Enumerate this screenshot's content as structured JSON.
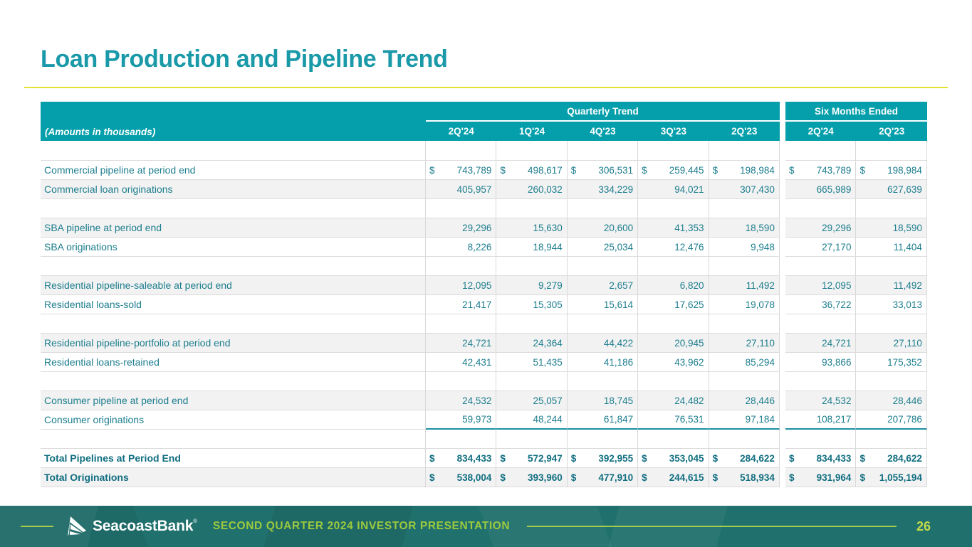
{
  "slide": {
    "title": "Loan Production and Pipeline Trend",
    "page_number": "26",
    "footer_title": "SECOND QUARTER 2024 INVESTOR PRESENTATION",
    "brand": "SeacoastBank",
    "brand_mark": "®"
  },
  "colors": {
    "header_teal": "#059fab",
    "title_teal": "#1a99a8",
    "text_teal": "#1d7e8e",
    "total_teal": "#106e80",
    "rule_yellow": "#e1e233",
    "footer_green": "#9cca3e",
    "footer_bg": "#20706d",
    "band_gray": "#f2f2f2"
  },
  "table": {
    "note": "(Amounts in thousands)",
    "groups": [
      {
        "label": "Quarterly Trend",
        "columns": [
          "2Q'24",
          "1Q'24",
          "4Q'23",
          "3Q'23",
          "2Q'23"
        ]
      },
      {
        "label": "Six Months Ended",
        "columns": [
          "2Q'24",
          "2Q'23"
        ]
      }
    ],
    "rows": [
      {
        "blank": true,
        "tall": true
      },
      {
        "label": "Commercial pipeline at period end",
        "dollar": true,
        "q": [
          "743,789",
          "498,617",
          "306,531",
          "259,445",
          "198,984"
        ],
        "s": [
          "743,789",
          "198,984"
        ]
      },
      {
        "label": "Commercial loan originations",
        "shaded": true,
        "q": [
          "405,957",
          "260,032",
          "334,229",
          "94,021",
          "307,430"
        ],
        "s": [
          "665,989",
          "627,639"
        ]
      },
      {
        "blank": true
      },
      {
        "label": "SBA pipeline at period end",
        "shaded": true,
        "q": [
          "29,296",
          "15,630",
          "20,600",
          "41,353",
          "18,590"
        ],
        "s": [
          "29,296",
          "18,590"
        ]
      },
      {
        "label": "SBA originations",
        "q": [
          "8,226",
          "18,944",
          "25,034",
          "12,476",
          "9,948"
        ],
        "s": [
          "27,170",
          "11,404"
        ]
      },
      {
        "blank": true
      },
      {
        "label": "Residential pipeline-saleable at period end",
        "shaded": true,
        "q": [
          "12,095",
          "9,279",
          "2,657",
          "6,820",
          "11,492"
        ],
        "s": [
          "12,095",
          "11,492"
        ]
      },
      {
        "label": "Residential loans-sold",
        "q": [
          "21,417",
          "15,305",
          "15,614",
          "17,625",
          "19,078"
        ],
        "s": [
          "36,722",
          "33,013"
        ]
      },
      {
        "blank": true
      },
      {
        "label": "Residential pipeline-portfolio at period end",
        "shaded": true,
        "q": [
          "24,721",
          "24,364",
          "44,422",
          "20,945",
          "27,110"
        ],
        "s": [
          "24,721",
          "27,110"
        ]
      },
      {
        "label": "Residential loans-retained",
        "q": [
          "42,431",
          "51,435",
          "41,186",
          "43,962",
          "85,294"
        ],
        "s": [
          "93,866",
          "175,352"
        ]
      },
      {
        "blank": true
      },
      {
        "label": "Consumer pipeline at period end",
        "shaded": true,
        "q": [
          "24,532",
          "25,057",
          "18,745",
          "24,482",
          "28,446"
        ],
        "s": [
          "24,532",
          "28,446"
        ]
      },
      {
        "label": "Consumer originations",
        "underline": true,
        "q": [
          "59,973",
          "48,244",
          "61,847",
          "76,531",
          "97,184"
        ],
        "s": [
          "108,217",
          "207,786"
        ]
      },
      {
        "blank": true
      },
      {
        "label": "Total Pipelines at Period End",
        "dollar": true,
        "bold": true,
        "q": [
          "834,433",
          "572,947",
          "392,955",
          "353,045",
          "284,622"
        ],
        "s": [
          "834,433",
          "284,622"
        ]
      },
      {
        "label": "Total Originations",
        "dollar": true,
        "bold": true,
        "shaded": true,
        "q": [
          "538,004",
          "393,960",
          "477,910",
          "244,615",
          "518,934"
        ],
        "s": [
          "931,964",
          "1,055,194"
        ]
      }
    ]
  }
}
